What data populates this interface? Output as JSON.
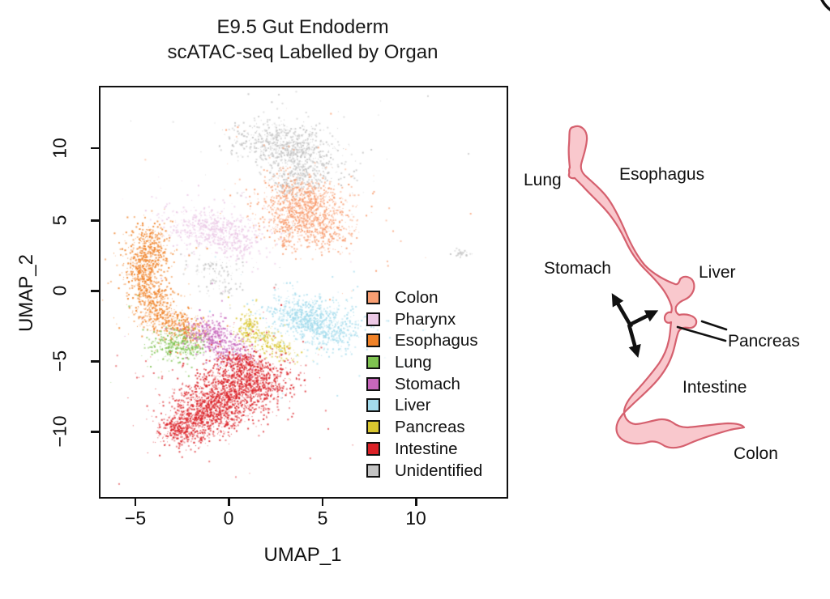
{
  "figure": {
    "title_line1": "E9.5 Gut Endoderm",
    "title_line2": "scATAC-seq Labelled by Organ"
  },
  "chart_data": {
    "type": "scatter",
    "title": "E9.5 Gut Endoderm scATAC-seq Labelled by Organ",
    "xlabel": "UMAP_1",
    "ylabel": "UMAP_2",
    "x_domain": [
      -6.9,
      14.8
    ],
    "y_domain": [
      -14.6,
      14.5
    ],
    "x_ticks": [
      -5,
      0,
      5,
      10
    ],
    "x_tick_labels": [
      "−5",
      "0",
      "5",
      "10"
    ],
    "y_ticks": [
      10,
      5,
      0,
      -5,
      -10
    ],
    "y_tick_labels": [
      "10",
      "5",
      "0",
      "−5",
      "−10"
    ],
    "grid": false,
    "legend_position": "inside-right-middle",
    "legend": {
      "entries": [
        {
          "label": "Colon",
          "color": "#F89E72"
        },
        {
          "label": "Pharynx",
          "color": "#EBC9E6"
        },
        {
          "label": "Esophagus",
          "color": "#F08228"
        },
        {
          "label": "Lung",
          "color": "#7FC351"
        },
        {
          "label": "Stomach",
          "color": "#C767BC"
        },
        {
          "label": "Liver",
          "color": "#A3DBEC"
        },
        {
          "label": "Pancreas",
          "color": "#D9C62F"
        },
        {
          "label": "Intestine",
          "color": "#DB2127"
        },
        {
          "label": "Unidentified",
          "color": "#C3C3C3"
        }
      ]
    },
    "blob_format": "[center_x, center_y, sigma_x, sigma_y, rotation_deg, n_points] in UMAP coordinates",
    "clusters": [
      {
        "organ": "Unidentified",
        "color": "#C3C3C3",
        "blobs": [
          [
            2.6,
            10.6,
            1.25,
            0.8,
            -10,
            550
          ],
          [
            4.1,
            9.0,
            0.95,
            0.95,
            0,
            380
          ],
          [
            3.2,
            7.7,
            0.6,
            0.6,
            0,
            110
          ],
          [
            -0.9,
            1.7,
            0.85,
            0.35,
            -5,
            80
          ],
          [
            -0.5,
            0.4,
            0.55,
            0.5,
            0,
            45
          ],
          [
            12.4,
            2.8,
            0.22,
            0.16,
            0,
            28
          ]
        ]
      },
      {
        "organ": "Pharynx",
        "color": "#EBC9E6",
        "blobs": [
          [
            -0.9,
            4.4,
            1.3,
            0.75,
            -15,
            600
          ],
          [
            0.5,
            3.3,
            0.5,
            0.45,
            0,
            90
          ]
        ]
      },
      {
        "organ": "Colon",
        "color": "#F89E72",
        "blobs": [
          [
            3.9,
            6.3,
            1.2,
            0.9,
            -20,
            750
          ],
          [
            4.9,
            4.4,
            0.8,
            0.8,
            0,
            320
          ],
          [
            3.1,
            4.8,
            0.55,
            0.5,
            0,
            130
          ],
          [
            2.9,
            3.5,
            0.3,
            0.35,
            0,
            45
          ]
        ]
      },
      {
        "organ": "Esophagus",
        "color": "#F08228",
        "blobs": [
          [
            -4.3,
            3.3,
            0.6,
            0.85,
            0,
            300
          ],
          [
            -4.7,
            1.4,
            0.5,
            0.95,
            0,
            320
          ],
          [
            -4.1,
            -0.6,
            0.55,
            0.85,
            0,
            300
          ],
          [
            -3.3,
            -2.1,
            0.6,
            0.55,
            -20,
            230
          ],
          [
            -2.3,
            -2.7,
            0.5,
            0.45,
            0,
            160
          ]
        ]
      },
      {
        "organ": "Lung",
        "color": "#7FC351",
        "blobs": [
          [
            -2.8,
            -3.7,
            0.8,
            0.55,
            10,
            340
          ]
        ]
      },
      {
        "organ": "Stomach",
        "color": "#C767BC",
        "blobs": [
          [
            -1.2,
            -2.9,
            0.7,
            0.5,
            -30,
            240
          ],
          [
            -0.2,
            -4.0,
            0.75,
            0.5,
            -35,
            240
          ]
        ]
      },
      {
        "organ": "Pancreas",
        "color": "#D9C62F",
        "blobs": [
          [
            2.0,
            -3.6,
            0.85,
            0.38,
            -35,
            210
          ],
          [
            1.0,
            -2.4,
            0.28,
            0.65,
            0,
            95
          ]
        ]
      },
      {
        "organ": "Liver",
        "color": "#A3DBEC",
        "blobs": [
          [
            3.7,
            -1.7,
            0.9,
            0.68,
            -20,
            480
          ],
          [
            5.2,
            -2.6,
            1.0,
            0.8,
            -15,
            480
          ]
        ]
      },
      {
        "organ": "Intestine",
        "color": "#DB2127",
        "blobs": [
          [
            1.3,
            -6.0,
            1.05,
            0.9,
            -15,
            700
          ],
          [
            0.0,
            -7.3,
            1.15,
            0.95,
            -20,
            800
          ],
          [
            -1.4,
            -8.8,
            0.95,
            0.8,
            -25,
            650
          ],
          [
            -2.6,
            -9.9,
            0.6,
            0.55,
            -20,
            280
          ],
          [
            0.5,
            -4.9,
            0.4,
            0.4,
            0,
            90
          ]
        ]
      }
    ]
  },
  "diagram": {
    "fill": "#F9C8CD",
    "stroke": "#D5606E",
    "labels": {
      "lung": "Lung",
      "esophagus": "Esophagus",
      "stomach": "Stomach",
      "liver": "Liver",
      "pancreas": "Pancreas",
      "intestine": "Intestine",
      "colon": "Colon"
    }
  }
}
